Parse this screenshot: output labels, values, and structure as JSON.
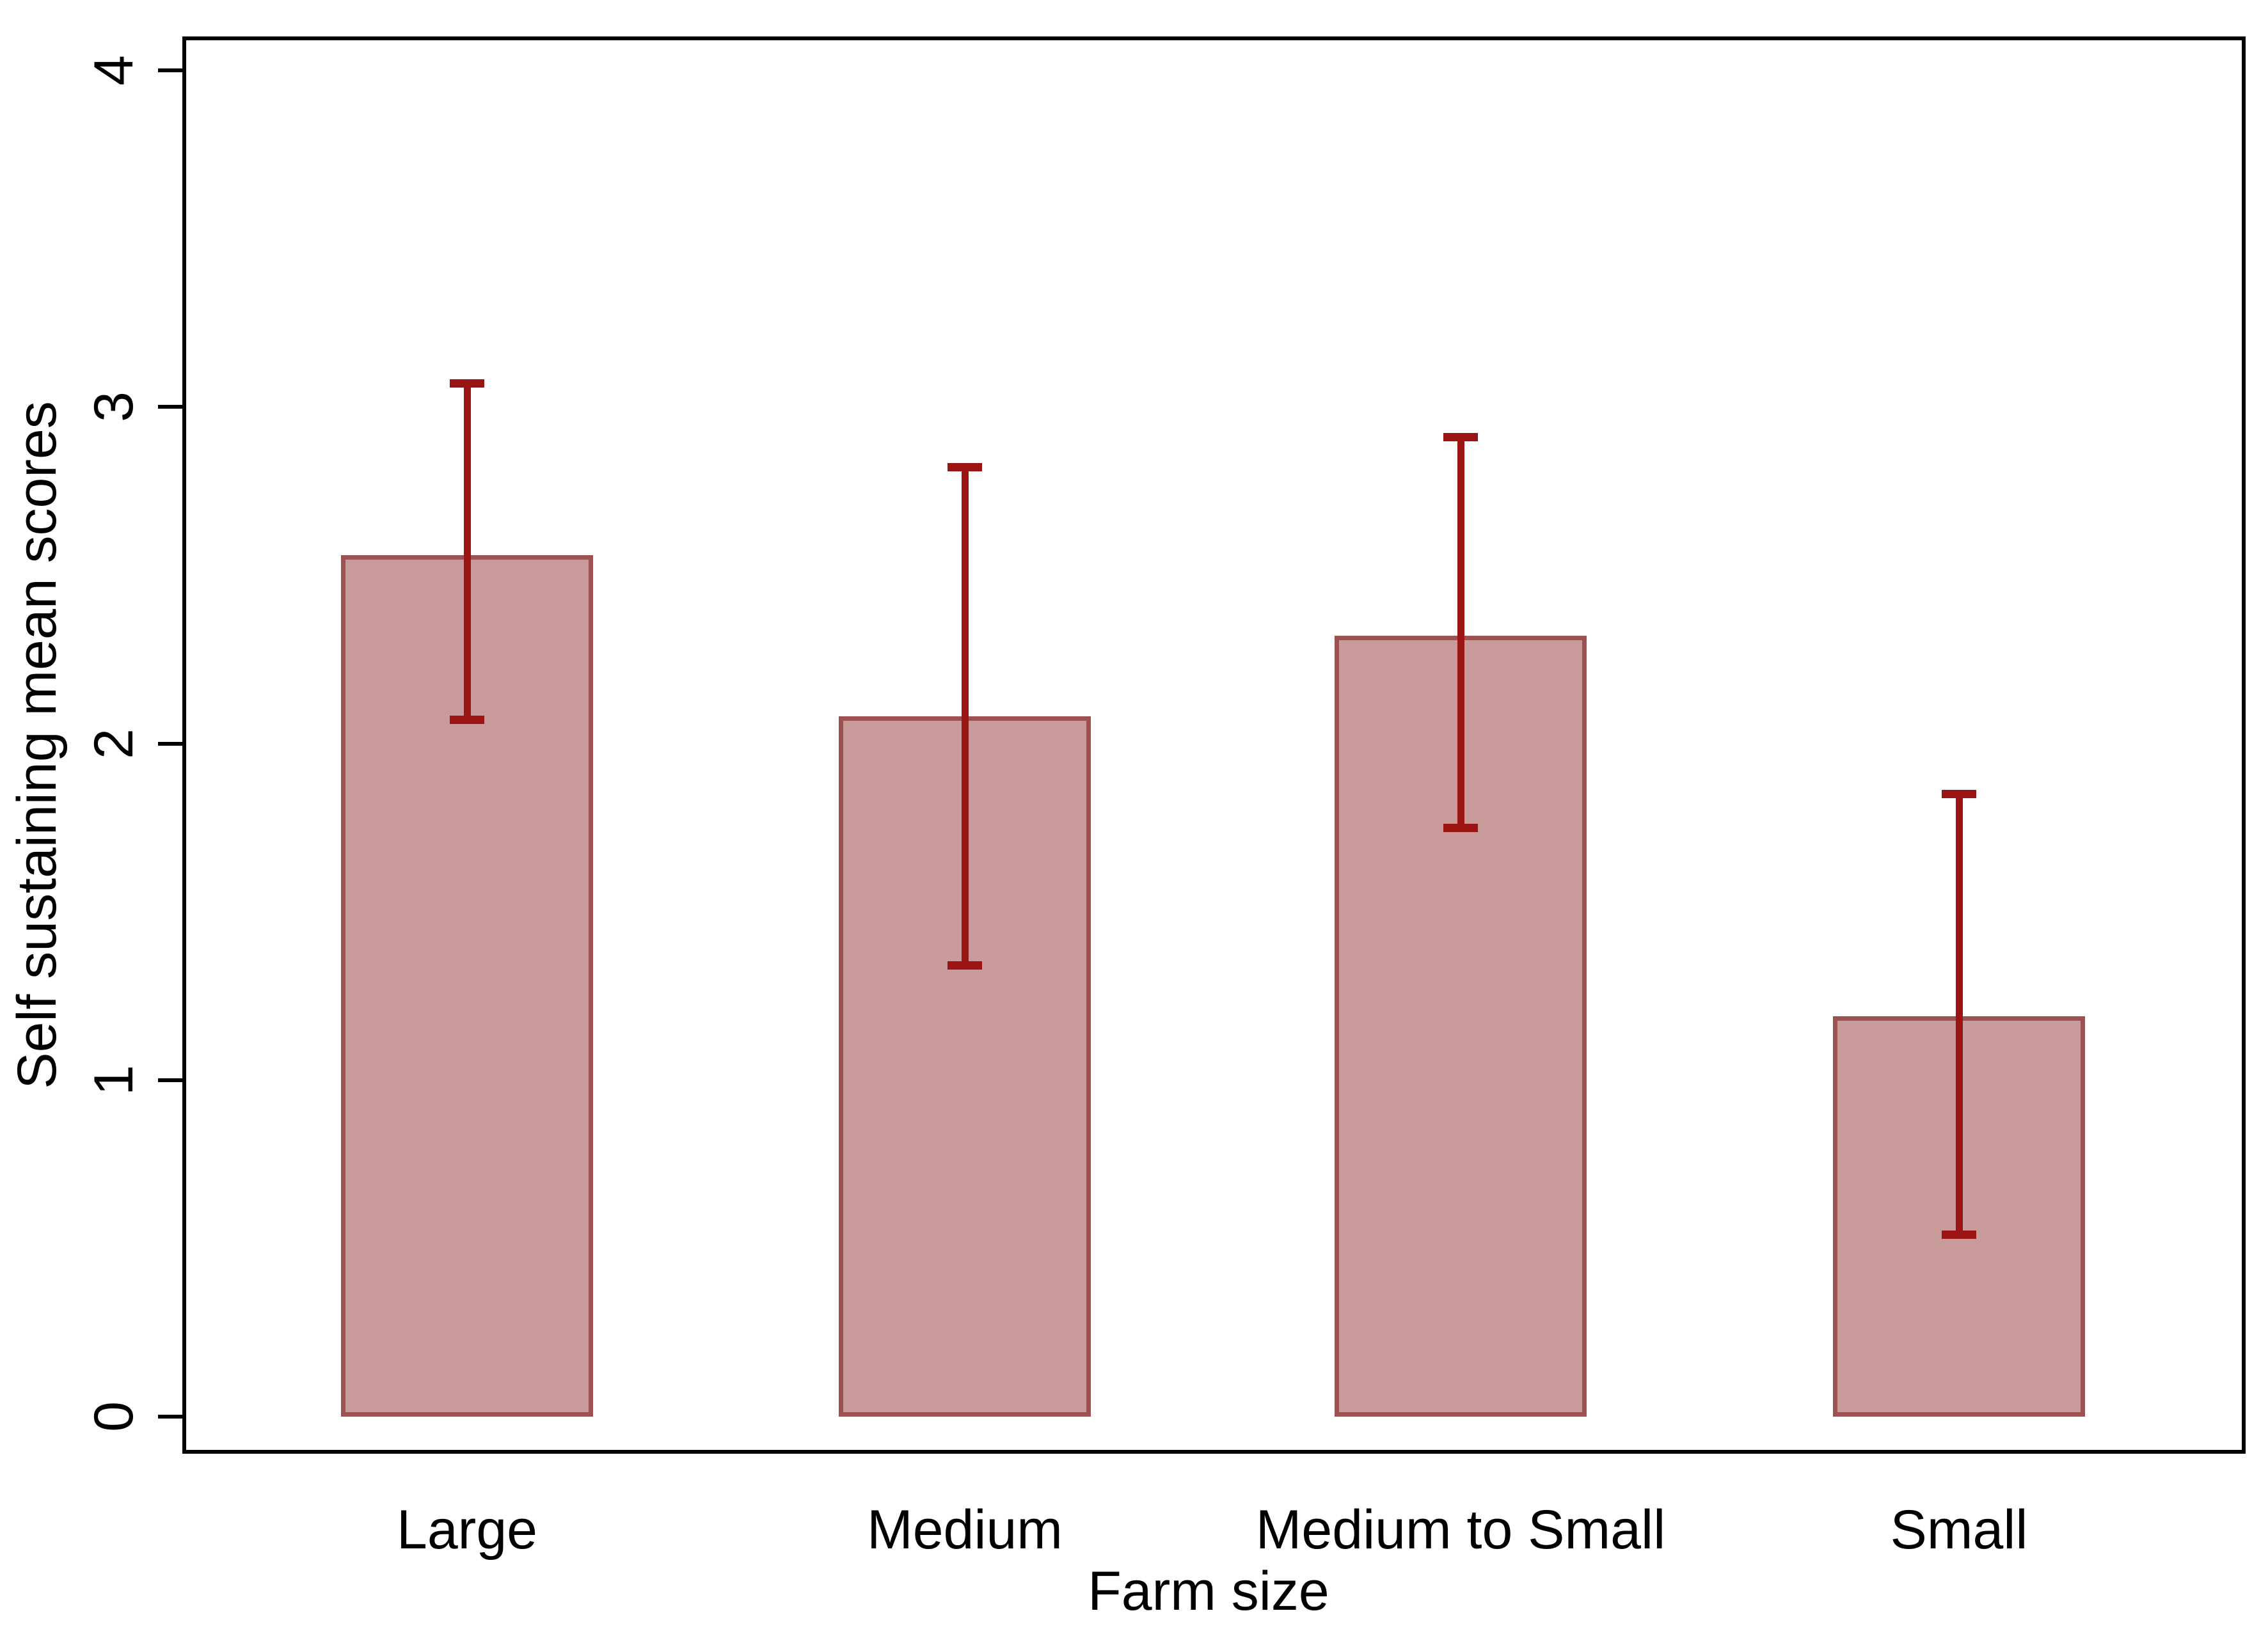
{
  "chart_data": {
    "type": "bar",
    "title": "",
    "xlabel": "Farm size",
    "ylabel": "Self sustaining mean scores",
    "categories": [
      "Large",
      "Medium",
      "Medium to Small",
      "Small"
    ],
    "values": [
      2.56,
      2.08,
      2.32,
      1.19
    ],
    "error_low": [
      2.07,
      1.34,
      1.75,
      0.54
    ],
    "error_high": [
      3.07,
      2.82,
      2.91,
      1.85
    ],
    "ylim": [
      0,
      4
    ],
    "yticks": [
      0,
      1,
      2,
      3,
      4
    ],
    "grid": "off",
    "legend": "none",
    "colors": {
      "bar_fill": "#c89a9a",
      "bar_border": "#9c5252",
      "error_bar": "#9b1414",
      "axis": "#000000",
      "background": "#ffffff"
    }
  }
}
